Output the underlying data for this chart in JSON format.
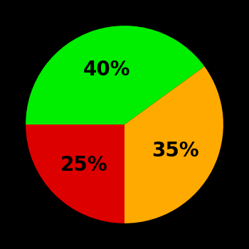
{
  "slices": [
    {
      "label": "40%",
      "value": 40,
      "color": "#00ee00"
    },
    {
      "label": "35%",
      "value": 35,
      "color": "#ffaa00"
    },
    {
      "label": "25%",
      "value": 25,
      "color": "#dd0000"
    }
  ],
  "background_color": "#000000",
  "text_color": "#000000",
  "font_size": 20,
  "font_weight": "bold",
  "startangle": 180,
  "figsize": [
    3.5,
    3.5
  ],
  "dpi": 100
}
